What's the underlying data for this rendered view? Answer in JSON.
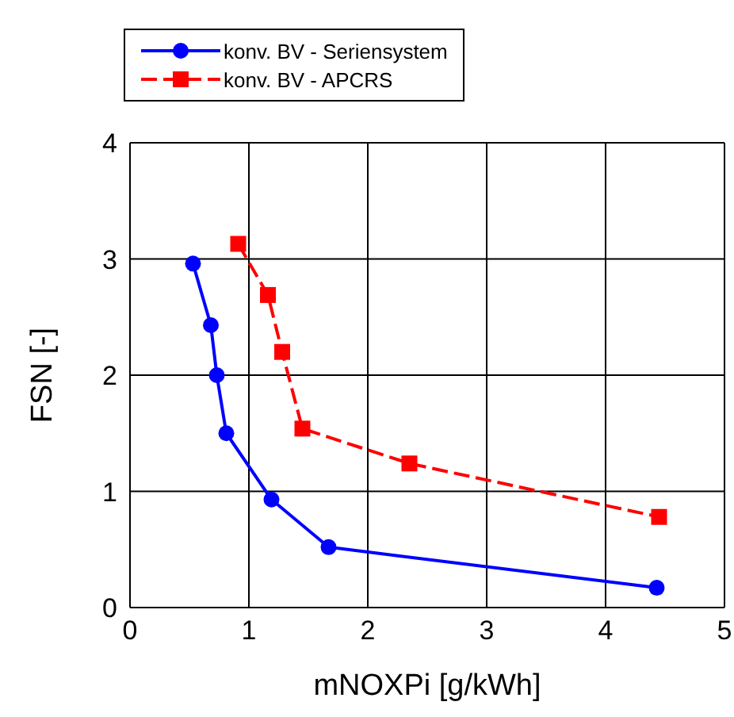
{
  "chart_data": {
    "type": "line",
    "xlabel": "mNOXPi [g/kWh]",
    "ylabel": "FSN  [-]",
    "xlim": [
      0,
      5
    ],
    "xticks": [
      0,
      1,
      2,
      3,
      4,
      5
    ],
    "ylim": [
      0,
      4
    ],
    "yticks": [
      0,
      1,
      2,
      3,
      4
    ],
    "grid": true,
    "legend": "top",
    "series": [
      {
        "name": "konv. BV - Seriensystem",
        "color": "#0000ff",
        "marker": "circle",
        "line_style": "solid",
        "x": [
          0.53,
          0.68,
          0.73,
          0.81,
          1.19,
          1.67,
          4.43
        ],
        "values": [
          2.96,
          2.43,
          2.0,
          1.5,
          0.93,
          0.52,
          0.17
        ]
      },
      {
        "name": "konv. BV - APCRS",
        "color": "#ff0000",
        "marker": "square",
        "line_style": "dashed",
        "x": [
          0.91,
          1.16,
          1.28,
          1.45,
          2.35,
          4.45
        ],
        "values": [
          3.13,
          2.69,
          2.2,
          1.54,
          1.24,
          0.78
        ]
      }
    ]
  }
}
